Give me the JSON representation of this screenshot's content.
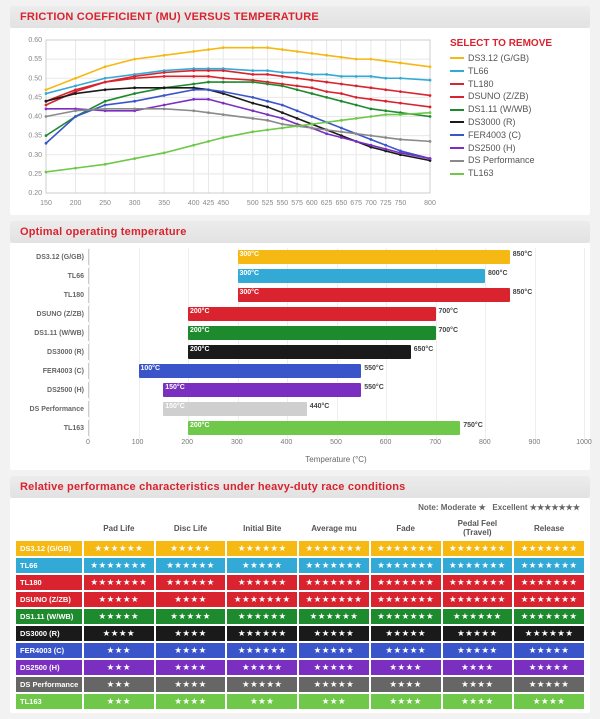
{
  "page_bg": "#f2f2f2",
  "accent": "#d9232e",
  "products": [
    {
      "key": "ds312",
      "label": "DS3.12 (G/GB)",
      "short": "DS3.12 (G/GB)",
      "color": "#f6b813"
    },
    {
      "key": "tl66",
      "label": "TL66",
      "short": "TL66",
      "color": "#33aad6"
    },
    {
      "key": "tl180",
      "label": "TL180",
      "short": "TL180",
      "color": "#d9232e"
    },
    {
      "key": "dsuno",
      "label": "DSUNO (Z/ZB)",
      "short": "DSUNO (Z/ZB)",
      "color": "#d9232e"
    },
    {
      "key": "ds111",
      "label": "DS1.11 (W/WB)",
      "short": "DS1.11 (W/WB)",
      "color": "#1e8a2e"
    },
    {
      "key": "ds3000",
      "label": "DS3000 (R)",
      "short": "DS3000 (R)",
      "color": "#1a1a1a"
    },
    {
      "key": "fer4003",
      "label": "FER4003 (C)",
      "short": "FER4003 (C)",
      "color": "#3a55c9"
    },
    {
      "key": "ds2500",
      "label": "DS2500 (H)",
      "short": "DS2500 (H)",
      "color": "#7b2fc0"
    },
    {
      "key": "dsperf",
      "label": "DS Performance",
      "short": "DS Performance",
      "color": "#8a8a8a"
    },
    {
      "key": "tl163",
      "label": "TL163",
      "short": "TL163",
      "color": "#6fc849"
    }
  ],
  "linechart": {
    "title": "FRICTION COEFFICIENT (MU) VERSUS TEMPERATURE",
    "legend_title": "SELECT TO REMOVE",
    "x": [
      150,
      200,
      250,
      300,
      350,
      400,
      425,
      450,
      500,
      525,
      550,
      575,
      600,
      625,
      650,
      675,
      700,
      725,
      750,
      800
    ],
    "xlim": [
      150,
      800
    ],
    "ylim": [
      0.2,
      0.6
    ],
    "ytick_step": 0.05,
    "grid_color": "#e8e8e8",
    "axis_font": 7,
    "series": {
      "ds312": [
        0.47,
        0.5,
        0.53,
        0.55,
        0.56,
        0.57,
        0.575,
        0.58,
        0.58,
        0.58,
        0.575,
        0.57,
        0.565,
        0.56,
        0.555,
        0.55,
        0.55,
        0.545,
        0.54,
        0.53
      ],
      "tl66": [
        0.46,
        0.48,
        0.5,
        0.51,
        0.52,
        0.525,
        0.525,
        0.525,
        0.52,
        0.52,
        0.515,
        0.515,
        0.51,
        0.51,
        0.505,
        0.505,
        0.505,
        0.5,
        0.5,
        0.495
      ],
      "tl180": [
        0.44,
        0.47,
        0.49,
        0.505,
        0.515,
        0.52,
        0.52,
        0.52,
        0.51,
        0.51,
        0.505,
        0.5,
        0.495,
        0.49,
        0.485,
        0.48,
        0.475,
        0.47,
        0.465,
        0.455
      ],
      "dsuno": [
        0.43,
        0.465,
        0.49,
        0.5,
        0.505,
        0.505,
        0.505,
        0.5,
        0.495,
        0.49,
        0.485,
        0.48,
        0.475,
        0.465,
        0.46,
        0.45,
        0.445,
        0.44,
        0.435,
        0.425
      ],
      "ds111": [
        0.35,
        0.4,
        0.44,
        0.46,
        0.475,
        0.485,
        0.49,
        0.49,
        0.49,
        0.485,
        0.48,
        0.47,
        0.46,
        0.45,
        0.44,
        0.43,
        0.42,
        0.415,
        0.41,
        0.4
      ],
      "ds3000": [
        0.44,
        0.46,
        0.47,
        0.475,
        0.475,
        0.475,
        0.47,
        0.46,
        0.435,
        0.425,
        0.41,
        0.395,
        0.38,
        0.365,
        0.35,
        0.335,
        0.32,
        0.31,
        0.3,
        0.285
      ],
      "fer4003": [
        0.33,
        0.4,
        0.43,
        0.44,
        0.455,
        0.47,
        0.47,
        0.465,
        0.45,
        0.44,
        0.43,
        0.415,
        0.4,
        0.385,
        0.37,
        0.355,
        0.34,
        0.325,
        0.31,
        0.29
      ],
      "ds2500": [
        0.42,
        0.42,
        0.415,
        0.415,
        0.43,
        0.445,
        0.445,
        0.435,
        0.415,
        0.405,
        0.395,
        0.38,
        0.37,
        0.355,
        0.345,
        0.335,
        0.325,
        0.315,
        0.305,
        0.29
      ],
      "dsperf": [
        0.4,
        0.415,
        0.42,
        0.42,
        0.42,
        0.415,
        0.41,
        0.405,
        0.395,
        0.39,
        0.38,
        0.375,
        0.37,
        0.365,
        0.36,
        0.355,
        0.35,
        0.345,
        0.34,
        0.335
      ],
      "tl163": [
        0.255,
        0.265,
        0.275,
        0.29,
        0.305,
        0.325,
        0.335,
        0.345,
        0.36,
        0.365,
        0.37,
        0.375,
        0.38,
        0.385,
        0.39,
        0.395,
        0.4,
        0.405,
        0.405,
        0.41
      ]
    }
  },
  "tempchart": {
    "title": "Optimal operating temperature",
    "xlabel": "Temperature (°C)",
    "xlim": [
      0,
      1000
    ],
    "xtick_step": 100,
    "grid_color": "#eeeeee",
    "bars": [
      {
        "key": "ds312",
        "min": 300,
        "max": 850
      },
      {
        "key": "tl66",
        "min": 300,
        "max": 800
      },
      {
        "key": "tl180",
        "min": 300,
        "max": 850
      },
      {
        "key": "dsuno",
        "min": 200,
        "max": 700
      },
      {
        "key": "ds111",
        "min": 200,
        "max": 700
      },
      {
        "key": "ds3000",
        "min": 200,
        "max": 650
      },
      {
        "key": "fer4003",
        "min": 100,
        "max": 550
      },
      {
        "key": "ds2500",
        "min": 150,
        "max": 550,
        "color_override": "#7b2fc0"
      },
      {
        "key": "dsperf",
        "min": 150,
        "max": 440,
        "color_override": "#cfcfcf",
        "label_color": "#666"
      },
      {
        "key": "tl163",
        "min": 200,
        "max": 750
      }
    ]
  },
  "starstable": {
    "title": "Relative performance characteristics under heavy-duty race conditions",
    "note_label": "Note:",
    "note_moderate": "Moderate",
    "note_excellent": "Excellent",
    "columns": [
      "Pad Life",
      "Disc Life",
      "Initial Bite",
      "Average mu",
      "Fade",
      "Pedal Feel (Travel)",
      "Release"
    ],
    "max_stars": 7,
    "star_char": "★",
    "rows": [
      {
        "key": "ds312",
        "vals": [
          6,
          5,
          6,
          7,
          7,
          7,
          7
        ]
      },
      {
        "key": "tl66",
        "vals": [
          7,
          6,
          5,
          7,
          7,
          7,
          7
        ]
      },
      {
        "key": "tl180",
        "vals": [
          7,
          6,
          6,
          7,
          7,
          7,
          7
        ]
      },
      {
        "key": "dsuno",
        "vals": [
          5,
          4,
          7,
          7,
          7,
          7,
          7
        ]
      },
      {
        "key": "ds111",
        "vals": [
          5,
          5,
          6,
          6,
          7,
          6,
          7
        ]
      },
      {
        "key": "ds3000",
        "vals": [
          4,
          4,
          6,
          5,
          5,
          5,
          6
        ]
      },
      {
        "key": "fer4003",
        "vals": [
          3,
          4,
          6,
          5,
          5,
          5,
          5
        ]
      },
      {
        "key": "ds2500",
        "vals": [
          3,
          4,
          5,
          5,
          4,
          4,
          5
        ]
      },
      {
        "key": "dsperf",
        "vals": [
          3,
          4,
          5,
          5,
          4,
          4,
          5
        ],
        "color_override": "#666666"
      },
      {
        "key": "tl163",
        "vals": [
          3,
          4,
          3,
          3,
          4,
          4,
          4
        ]
      }
    ]
  }
}
